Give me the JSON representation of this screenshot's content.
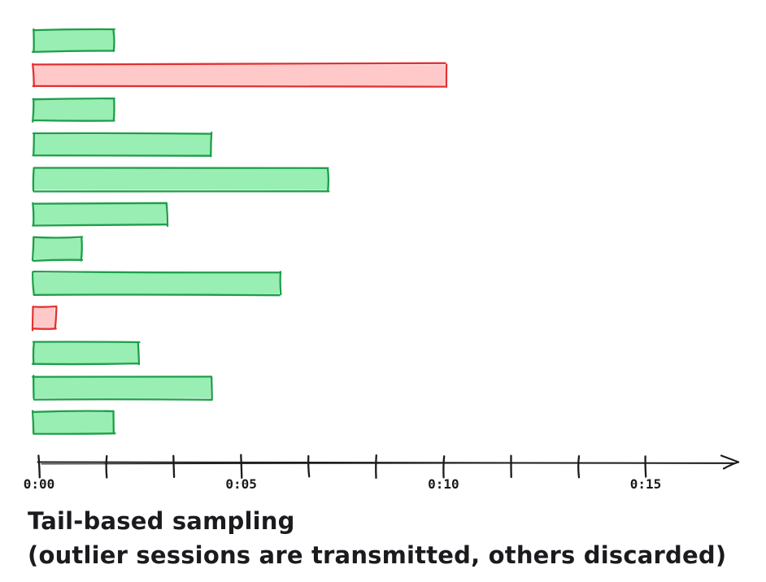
{
  "chart_data": {
    "type": "bar",
    "orientation": "horizontal",
    "title": "",
    "x_axis": {
      "unit": "mm:ss",
      "range_seconds": [
        0,
        15
      ],
      "tick_count": 10,
      "tick_labels": [
        "0:00",
        "0:05",
        "0:10",
        "0:15"
      ],
      "labeled_tick_indices": [
        0,
        3,
        6,
        9
      ]
    },
    "bars": [
      {
        "duration_seconds": 2.0,
        "status": "discarded"
      },
      {
        "duration_seconds": 10.2,
        "status": "outlier-transmitted"
      },
      {
        "duration_seconds": 2.0,
        "status": "discarded"
      },
      {
        "duration_seconds": 4.4,
        "status": "discarded"
      },
      {
        "duration_seconds": 7.3,
        "status": "discarded"
      },
      {
        "duration_seconds": 3.3,
        "status": "discarded"
      },
      {
        "duration_seconds": 1.2,
        "status": "discarded"
      },
      {
        "duration_seconds": 6.1,
        "status": "discarded"
      },
      {
        "duration_seconds": 0.55,
        "status": "outlier-transmitted"
      },
      {
        "duration_seconds": 2.6,
        "status": "discarded"
      },
      {
        "duration_seconds": 4.4,
        "status": "discarded"
      },
      {
        "duration_seconds": 2.0,
        "status": "discarded"
      }
    ],
    "colors": {
      "discarded_fill": "#98eeb3",
      "discarded_stroke": "#1e9e4a",
      "outlier_fill": "#ffc9c9",
      "outlier_stroke": "#e03131",
      "axis_stroke": "#1b1b1f",
      "text": "#1b1b1f"
    }
  },
  "caption": {
    "line1": "Tail-based sampling",
    "line2": "(outlier sessions are transmitted, others discarded)"
  }
}
